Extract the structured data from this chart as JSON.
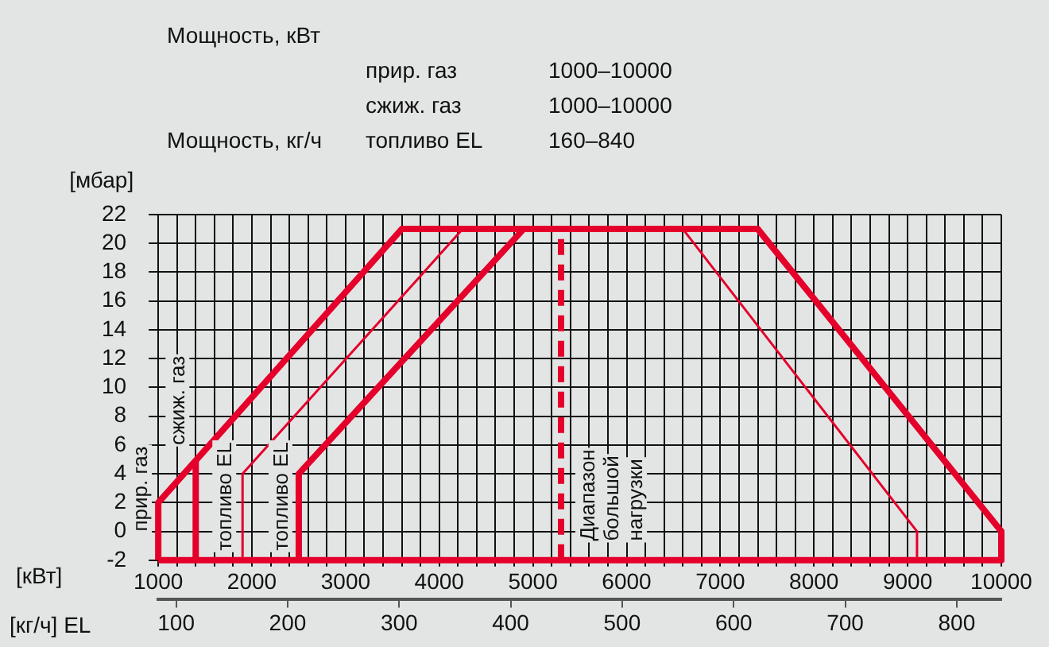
{
  "chart_data": {
    "type": "line",
    "xlabel": "[кВт]",
    "ylabel": "[мбар]",
    "x2label": "[кг/ч]  EL",
    "annotations": [
      {
        "text": "Диапазон большой нагрузки",
        "x": 5300,
        "y": 0
      },
      "Мощность, кВт",
      "прир. газ",
      "1000–10000",
      "сжиж. газ",
      "1000–10000",
      "Мощность, кг/ч",
      "топливо EL",
      "160–840"
    ],
    "series": [
      {
        "name": "прир. газ",
        "color": "#e4002b",
        "x": [
          1000,
          1000,
          3600,
          7400,
          10000,
          10000
        ],
        "values": [
          -2,
          2,
          21,
          21,
          0,
          -2
        ]
      },
      {
        "name": "сжиж. газ",
        "color": "#e4002b",
        "x": [
          1400,
          1400
        ],
        "values": [
          -2,
          5
        ]
      },
      {
        "name": "топливо EL",
        "color": "#e4002b",
        "x": [
          1900,
          1900,
          4250,
          6600,
          9100,
          9100
        ],
        "values": [
          -2,
          4,
          21,
          21,
          0,
          -2
        ]
      },
      {
        "name": "топливо EL",
        "color": "#e4002b",
        "x": [
          2500,
          2500,
          4900
        ],
        "values": [
          -2,
          4,
          21
        ]
      },
      {
        "color": "#e4002b",
        "x": [
          5300,
          5300
        ],
        "values": [
          -2,
          21
        ],
        "line_style": "dashed"
      },
      {
        "color": "#e4002b",
        "x": [
          1000,
          10000
        ],
        "values": [
          -2,
          -2
        ]
      }
    ],
    "xlim": [
      1000,
      10000
    ],
    "xticks": [
      1000,
      {
        "value": 1200,
        "label": null
      },
      {
        "value": 1400,
        "label": null
      },
      {
        "value": 1600,
        "label": null
      },
      {
        "value": 1800,
        "label": null
      },
      2000,
      {
        "value": 2200,
        "label": null
      },
      {
        "value": 2400,
        "label": null
      },
      {
        "value": 2600,
        "label": null
      },
      {
        "value": 2800,
        "label": null
      },
      3000,
      {
        "value": 3200,
        "label": null
      },
      {
        "value": 3400,
        "label": null
      },
      {
        "value": 3600,
        "label": null
      },
      {
        "value": 3800,
        "label": null
      },
      4000,
      {
        "value": 4200,
        "label": null
      },
      {
        "value": 4400,
        "label": null
      },
      {
        "value": 4600,
        "label": null
      },
      {
        "value": 4800,
        "label": null
      },
      5000,
      {
        "value": 5200,
        "label": null
      },
      {
        "value": 5400,
        "label": null
      },
      {
        "value": 5600,
        "label": null
      },
      {
        "value": 5800,
        "label": null
      },
      6000,
      {
        "value": 6200,
        "label": null
      },
      {
        "value": 6400,
        "label": null
      },
      {
        "value": 6600,
        "label": null
      },
      {
        "value": 6800,
        "label": null
      },
      7000,
      {
        "value": 7200,
        "label": null
      },
      {
        "value": 7400,
        "label": null
      },
      {
        "value": 7600,
        "label": null
      },
      {
        "value": 7800,
        "label": null
      },
      8000,
      {
        "value": 8200,
        "label": null
      },
      {
        "value": 8400,
        "label": null
      },
      {
        "value": 8600,
        "label": null
      },
      {
        "value": 8800,
        "label": null
      },
      9000,
      {
        "value": 9200,
        "label": null
      },
      {
        "value": 9400,
        "label": null
      },
      {
        "value": 9600,
        "label": null
      },
      {
        "value": 9800,
        "label": null
      },
      10000
    ],
    "x2lim": [
      84,
      840
    ],
    "x2ticks": [
      100,
      200,
      300,
      400,
      500,
      600,
      700,
      800
    ],
    "ylim": [
      -2,
      22
    ],
    "yticks": [
      -2,
      0,
      2,
      4,
      6,
      8,
      10,
      12,
      14,
      16,
      18,
      20,
      22
    ],
    "grid": true,
    "legend": false,
    "line_style": "solid"
  }
}
